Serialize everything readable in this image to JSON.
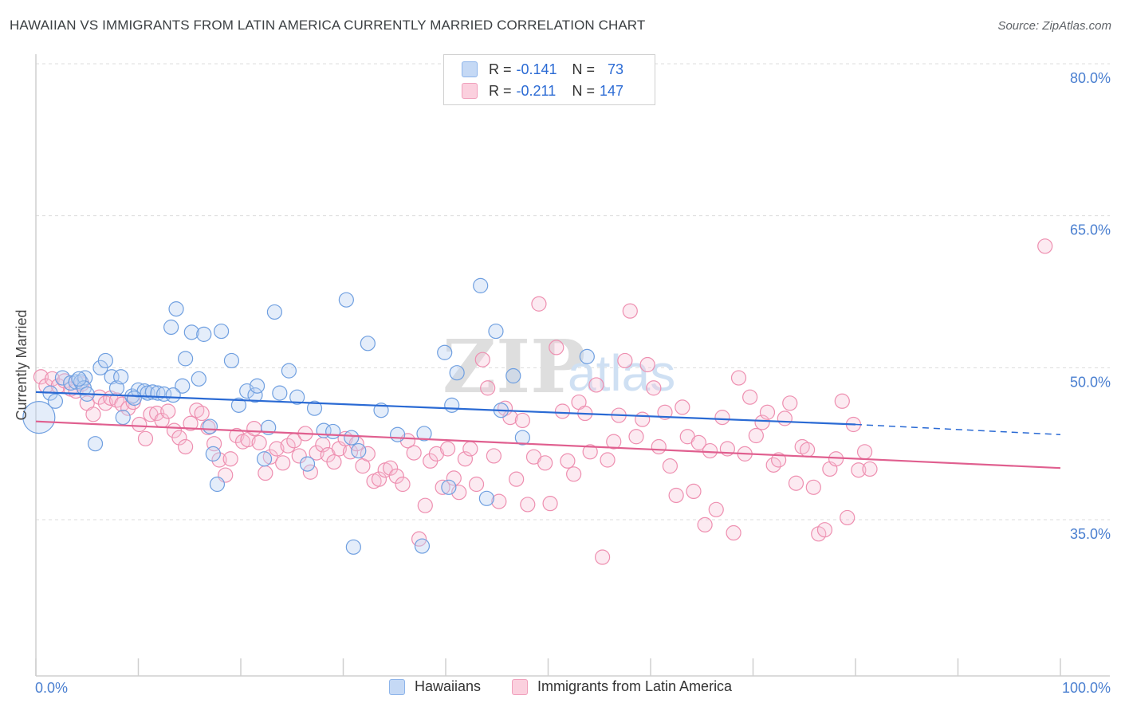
{
  "title": "HAWAIIAN VS IMMIGRANTS FROM LATIN AMERICA CURRENTLY MARRIED CORRELATION CHART",
  "source": "Source: ZipAtlas.com",
  "watermark": {
    "zip": "ZIP",
    "atlas": "atlas"
  },
  "legend": {
    "rows": [
      {
        "r_label": "R =",
        "r_value": "-0.141",
        "n_label": "N =",
        "n_value": "73",
        "color": "#8db4ea",
        "fill": "#c5d9f5"
      },
      {
        "r_label": "R =",
        "r_value": "-0.211",
        "n_label": "N =",
        "n_value": "147",
        "color": "#f0a0bc",
        "fill": "#fbd0de"
      }
    ]
  },
  "bottom_legend": {
    "hawaiians": "Hawaiians",
    "immigrants": "Immigrants from Latin America"
  },
  "colors": {
    "blue": "#6f9fe0",
    "blue_line": "#2a6ad4",
    "pink": "#ee8fb0",
    "pink_line": "#e05f8f",
    "axis_text": "#4a7fd0"
  },
  "chart_data": {
    "type": "scatter",
    "title": "HAWAIIAN VS IMMIGRANTS FROM LATIN AMERICA CURRENTLY MARRIED CORRELATION CHART",
    "xlabel": "",
    "ylabel": "Currently Married",
    "xlim": [
      0,
      100
    ],
    "ylim": [
      20,
      81.5
    ],
    "x_tick_labels": [
      "0.0%",
      "100.0%"
    ],
    "y_ticks": [
      35,
      50,
      65,
      80
    ],
    "y_tick_labels": [
      "35.0%",
      "50.0%",
      "65.0%",
      "80.0%"
    ],
    "grid": true,
    "legend_position": "top-center",
    "series": [
      {
        "name": "Hawaiians",
        "trend": {
          "x0": 0,
          "y0": 47.6,
          "x1": 80,
          "y1": 44.4,
          "dash_to": {
            "x": 100,
            "y": 43.4
          }
        },
        "points": [
          [
            0.3,
            45.1
          ],
          [
            1.4,
            47.5
          ],
          [
            1.9,
            46.7
          ],
          [
            2.6,
            49.0
          ],
          [
            3.4,
            48.5
          ],
          [
            3.9,
            48.6
          ],
          [
            4.4,
            48.6
          ],
          [
            4.8,
            49.0
          ],
          [
            4.7,
            48.0
          ],
          [
            5.0,
            47.4
          ],
          [
            5.8,
            42.5
          ],
          [
            6.3,
            50.0
          ],
          [
            6.8,
            50.7
          ],
          [
            7.4,
            49.1
          ],
          [
            7.9,
            48.0
          ],
          [
            8.3,
            49.1
          ],
          [
            8.5,
            45.1
          ],
          [
            9.4,
            47.2
          ],
          [
            10.0,
            47.8
          ],
          [
            10.6,
            47.7
          ],
          [
            10.9,
            47.5
          ],
          [
            11.4,
            47.6
          ],
          [
            11.9,
            47.5
          ],
          [
            12.5,
            47.4
          ],
          [
            13.2,
            54.0
          ],
          [
            13.7,
            55.8
          ],
          [
            14.3,
            48.2
          ],
          [
            14.6,
            50.9
          ],
          [
            15.2,
            53.5
          ],
          [
            15.9,
            48.9
          ],
          [
            16.4,
            53.3
          ],
          [
            17.0,
            44.2
          ],
          [
            17.3,
            41.5
          ],
          [
            17.7,
            38.5
          ],
          [
            18.1,
            53.6
          ],
          [
            19.1,
            50.7
          ],
          [
            19.8,
            46.3
          ],
          [
            20.6,
            47.7
          ],
          [
            21.4,
            47.3
          ],
          [
            21.6,
            48.2
          ],
          [
            22.3,
            41.0
          ],
          [
            22.7,
            44.1
          ],
          [
            23.3,
            55.5
          ],
          [
            23.8,
            47.5
          ],
          [
            24.7,
            49.7
          ],
          [
            25.5,
            47.1
          ],
          [
            26.5,
            40.5
          ],
          [
            27.2,
            46.0
          ],
          [
            28.1,
            43.8
          ],
          [
            29.0,
            43.7
          ],
          [
            30.3,
            56.7
          ],
          [
            30.8,
            43.1
          ],
          [
            31.0,
            32.3
          ],
          [
            31.5,
            41.8
          ],
          [
            32.4,
            52.4
          ],
          [
            33.7,
            45.8
          ],
          [
            35.3,
            43.4
          ],
          [
            37.7,
            32.4
          ],
          [
            37.9,
            43.5
          ],
          [
            39.9,
            51.5
          ],
          [
            40.3,
            38.2
          ],
          [
            40.6,
            46.3
          ],
          [
            41.1,
            49.5
          ],
          [
            43.4,
            58.1
          ],
          [
            44.0,
            37.1
          ],
          [
            44.9,
            53.6
          ],
          [
            45.4,
            45.8
          ],
          [
            46.6,
            49.2
          ],
          [
            47.5,
            43.1
          ],
          [
            53.8,
            51.1
          ],
          [
            13.4,
            47.3
          ],
          [
            9.6,
            47.0
          ],
          [
            4.2,
            48.9
          ]
        ]
      },
      {
        "name": "Immigrants from Latin America",
        "trend": {
          "x0": 0,
          "y0": 44.7,
          "x1": 100,
          "y1": 40.1
        },
        "points": [
          [
            0.5,
            49.1
          ],
          [
            1.0,
            48.2
          ],
          [
            1.6,
            48.9
          ],
          [
            2.2,
            48.2
          ],
          [
            2.8,
            48.7
          ],
          [
            3.4,
            47.9
          ],
          [
            3.9,
            47.7
          ],
          [
            4.5,
            48.4
          ],
          [
            5.0,
            46.5
          ],
          [
            5.6,
            45.4
          ],
          [
            6.2,
            47.1
          ],
          [
            6.8,
            46.5
          ],
          [
            7.3,
            47.0
          ],
          [
            7.9,
            46.8
          ],
          [
            8.4,
            46.4
          ],
          [
            9.0,
            46.0
          ],
          [
            9.5,
            46.6
          ],
          [
            10.1,
            44.4
          ],
          [
            10.7,
            43.0
          ],
          [
            11.2,
            45.4
          ],
          [
            11.8,
            45.5
          ],
          [
            12.3,
            44.8
          ],
          [
            12.9,
            45.7
          ],
          [
            13.5,
            43.8
          ],
          [
            14.0,
            43.1
          ],
          [
            14.6,
            42.2
          ],
          [
            15.1,
            44.5
          ],
          [
            15.7,
            45.8
          ],
          [
            16.2,
            45.5
          ],
          [
            16.8,
            44.1
          ],
          [
            17.4,
            42.5
          ],
          [
            17.9,
            40.9
          ],
          [
            18.5,
            39.4
          ],
          [
            19.0,
            41.0
          ],
          [
            19.6,
            43.3
          ],
          [
            20.2,
            42.7
          ],
          [
            20.7,
            42.9
          ],
          [
            21.3,
            44.0
          ],
          [
            21.8,
            42.6
          ],
          [
            22.4,
            39.6
          ],
          [
            22.9,
            41.2
          ],
          [
            23.5,
            42.0
          ],
          [
            24.1,
            40.6
          ],
          [
            24.6,
            42.3
          ],
          [
            25.2,
            42.8
          ],
          [
            25.7,
            41.3
          ],
          [
            26.3,
            43.5
          ],
          [
            26.8,
            39.7
          ],
          [
            27.4,
            41.6
          ],
          [
            28.0,
            42.4
          ],
          [
            28.5,
            41.4
          ],
          [
            29.1,
            40.7
          ],
          [
            29.6,
            42.0
          ],
          [
            30.2,
            43.0
          ],
          [
            30.7,
            41.7
          ],
          [
            31.3,
            42.5
          ],
          [
            31.9,
            40.3
          ],
          [
            32.4,
            41.5
          ],
          [
            33.0,
            38.8
          ],
          [
            33.5,
            39.0
          ],
          [
            34.1,
            39.9
          ],
          [
            34.6,
            40.1
          ],
          [
            35.2,
            39.3
          ],
          [
            35.8,
            38.5
          ],
          [
            36.3,
            42.8
          ],
          [
            36.9,
            41.6
          ],
          [
            37.4,
            33.1
          ],
          [
            38.0,
            36.4
          ],
          [
            38.5,
            40.8
          ],
          [
            39.1,
            41.5
          ],
          [
            39.7,
            38.2
          ],
          [
            40.2,
            42.0
          ],
          [
            40.8,
            39.1
          ],
          [
            41.3,
            37.7
          ],
          [
            41.9,
            41.0
          ],
          [
            42.4,
            42.0
          ],
          [
            43.0,
            38.5
          ],
          [
            43.6,
            50.8
          ],
          [
            44.1,
            48.0
          ],
          [
            44.7,
            41.3
          ],
          [
            45.2,
            36.8
          ],
          [
            45.8,
            46.0
          ],
          [
            46.3,
            45.1
          ],
          [
            46.9,
            39.0
          ],
          [
            47.5,
            44.8
          ],
          [
            48.0,
            36.5
          ],
          [
            48.6,
            41.2
          ],
          [
            49.1,
            56.3
          ],
          [
            49.7,
            40.6
          ],
          [
            50.2,
            36.6
          ],
          [
            50.8,
            52.0
          ],
          [
            51.4,
            45.7
          ],
          [
            51.9,
            40.8
          ],
          [
            52.5,
            39.5
          ],
          [
            53.0,
            46.6
          ],
          [
            53.6,
            45.5
          ],
          [
            54.1,
            41.7
          ],
          [
            54.7,
            48.3
          ],
          [
            55.3,
            31.3
          ],
          [
            55.8,
            40.9
          ],
          [
            56.4,
            42.7
          ],
          [
            56.9,
            45.3
          ],
          [
            57.5,
            50.7
          ],
          [
            58.0,
            55.6
          ],
          [
            58.6,
            43.2
          ],
          [
            59.2,
            44.9
          ],
          [
            59.7,
            50.3
          ],
          [
            60.3,
            48.0
          ],
          [
            60.8,
            42.2
          ],
          [
            61.4,
            45.6
          ],
          [
            61.9,
            40.3
          ],
          [
            62.5,
            37.4
          ],
          [
            63.1,
            46.1
          ],
          [
            63.6,
            43.2
          ],
          [
            64.2,
            37.8
          ],
          [
            64.7,
            42.6
          ],
          [
            65.3,
            34.5
          ],
          [
            65.8,
            41.8
          ],
          [
            66.4,
            36.0
          ],
          [
            67.0,
            45.1
          ],
          [
            67.5,
            42.0
          ],
          [
            68.1,
            33.7
          ],
          [
            68.6,
            49.0
          ],
          [
            69.2,
            41.5
          ],
          [
            69.7,
            47.1
          ],
          [
            70.3,
            43.3
          ],
          [
            70.9,
            44.6
          ],
          [
            71.4,
            45.6
          ],
          [
            72.0,
            40.4
          ],
          [
            72.5,
            40.9
          ],
          [
            73.1,
            45.0
          ],
          [
            73.6,
            46.5
          ],
          [
            74.2,
            38.6
          ],
          [
            74.8,
            42.2
          ],
          [
            75.3,
            41.9
          ],
          [
            75.9,
            38.2
          ],
          [
            76.4,
            33.6
          ],
          [
            77.0,
            34.0
          ],
          [
            77.5,
            40.0
          ],
          [
            78.1,
            41.0
          ],
          [
            78.7,
            46.7
          ],
          [
            79.2,
            35.2
          ],
          [
            79.8,
            44.4
          ],
          [
            80.3,
            39.9
          ],
          [
            80.9,
            41.7
          ],
          [
            81.4,
            40.0
          ],
          [
            98.5,
            62.0
          ]
        ]
      }
    ]
  }
}
